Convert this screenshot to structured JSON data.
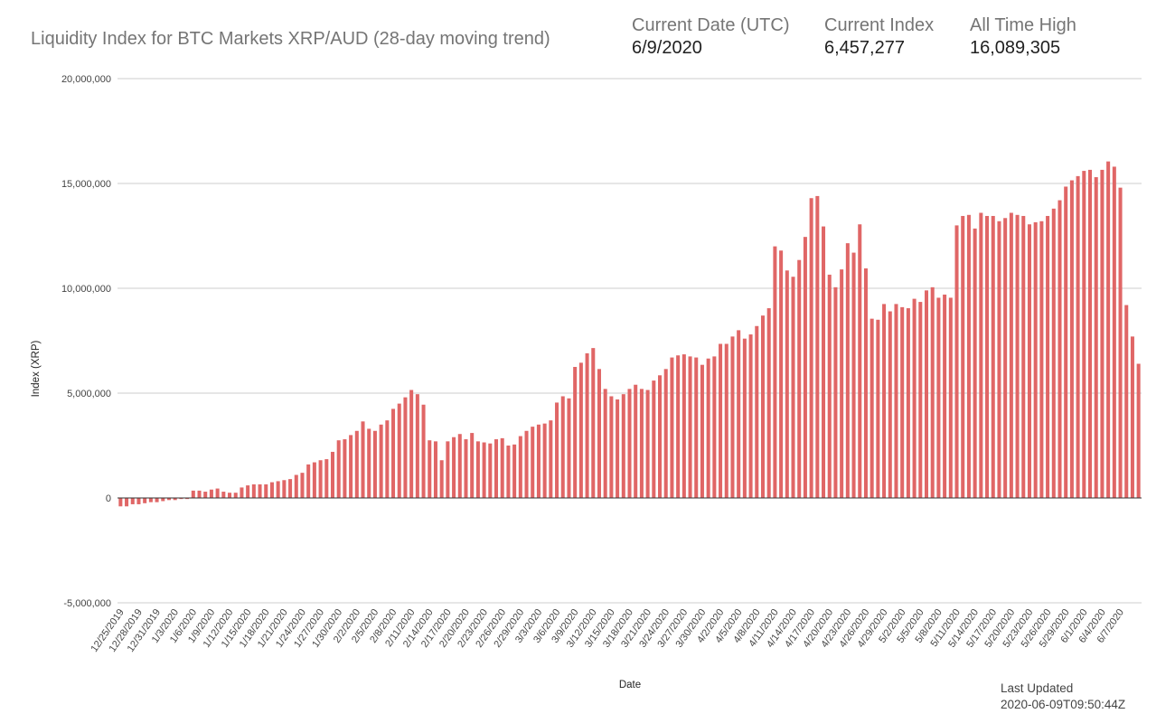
{
  "header": {
    "title": "Liquidity Index for BTC Markets XRP/AUD (28-day moving trend)",
    "stats": [
      {
        "label": "Current Date (UTC)",
        "value": "6/9/2020"
      },
      {
        "label": "Current Index",
        "value": "6,457,277"
      },
      {
        "label": "All Time High",
        "value": "16,089,305"
      }
    ]
  },
  "footer": {
    "updated_label": "Last Updated",
    "updated_value": "2020-06-09T09:50:44Z"
  },
  "chart_data": {
    "type": "bar",
    "xlabel": "Date",
    "ylabel": "Index (XRP)",
    "ylim": [
      -5000000,
      20000000
    ],
    "yticks": [
      20000000,
      15000000,
      10000000,
      5000000,
      0,
      -5000000
    ],
    "ytick_labels": [
      "20,000,000",
      "15,000,000",
      "10,000,000",
      "5,000,000",
      "0",
      "-5,000,000"
    ],
    "xtick_labels": [
      "12/25/2019",
      "12/28/2019",
      "12/31/2019",
      "1/3/2020",
      "1/6/2020",
      "1/9/2020",
      "1/12/2020",
      "1/15/2020",
      "1/18/2020",
      "1/21/2020",
      "1/24/2020",
      "1/27/2020",
      "1/30/2020",
      "2/2/2020",
      "2/5/2020",
      "2/8/2020",
      "2/11/2020",
      "2/14/2020",
      "2/17/2020",
      "2/20/2020",
      "2/23/2020",
      "2/26/2020",
      "2/29/2020",
      "3/3/2020",
      "3/6/2020",
      "3/9/2020",
      "3/12/2020",
      "3/15/2020",
      "3/18/2020",
      "3/21/2020",
      "3/24/2020",
      "3/27/2020",
      "3/30/2020",
      "4/2/2020",
      "4/5/2020",
      "4/8/2020",
      "4/11/2020",
      "4/14/2020",
      "4/17/2020",
      "4/20/2020",
      "4/23/2020",
      "4/26/2020",
      "4/29/2020",
      "5/2/2020",
      "5/5/2020",
      "5/8/2020",
      "5/11/2020",
      "5/14/2020",
      "5/17/2020",
      "5/20/2020",
      "5/23/2020",
      "5/26/2020",
      "5/29/2020",
      "6/1/2020",
      "6/4/2020",
      "6/7/2020"
    ],
    "bar_color": "#e06666",
    "grid": true,
    "legend": "none",
    "values": [
      -400000,
      -400000,
      -300000,
      -300000,
      -250000,
      -200000,
      -200000,
      -150000,
      -100000,
      -100000,
      -50000,
      -50000,
      350000,
      350000,
      300000,
      400000,
      450000,
      300000,
      250000,
      250000,
      500000,
      600000,
      650000,
      650000,
      650000,
      750000,
      800000,
      850000,
      900000,
      1100000,
      1200000,
      1600000,
      1700000,
      1800000,
      1850000,
      2200000,
      2750000,
      2800000,
      3000000,
      3200000,
      3650000,
      3300000,
      3200000,
      3500000,
      3700000,
      4250000,
      4500000,
      4800000,
      5150000,
      4950000,
      4450000,
      2750000,
      2700000,
      1800000,
      2700000,
      2900000,
      3050000,
      2800000,
      3100000,
      2700000,
      2650000,
      2600000,
      2800000,
      2850000,
      2500000,
      2550000,
      2950000,
      3200000,
      3400000,
      3500000,
      3550000,
      3700000,
      4550000,
      4850000,
      4750000,
      6250000,
      6450000,
      6900000,
      7150000,
      6150000,
      5200000,
      4850000,
      4700000,
      4950000,
      5200000,
      5400000,
      5200000,
      5150000,
      5600000,
      5850000,
      6150000,
      6700000,
      6800000,
      6850000,
      6750000,
      6700000,
      6350000,
      6650000,
      6750000,
      7350000,
      7350000,
      7700000,
      8000000,
      7600000,
      7800000,
      8200000,
      8700000,
      9050000,
      12000000,
      11800000,
      10850000,
      10550000,
      11350000,
      12450000,
      14300000,
      14400000,
      12950000,
      10650000,
      10050000,
      10900000,
      12150000,
      11700000,
      13050000,
      10950000,
      8550000,
      8500000,
      9250000,
      8900000,
      9250000,
      9100000,
      9050000,
      9500000,
      9350000,
      9900000,
      10050000,
      9550000,
      9700000,
      9550000,
      13000000,
      13450000,
      13500000,
      12850000,
      13600000,
      13450000,
      13450000,
      13200000,
      13350000,
      13600000,
      13500000,
      13450000,
      13050000,
      13150000,
      13200000,
      13450000,
      13800000,
      14200000,
      14850000,
      15150000,
      15350000,
      15600000,
      15650000,
      15300000,
      15650000,
      16050000,
      15800000,
      14800000,
      9200000,
      7700000,
      6400000
    ]
  }
}
